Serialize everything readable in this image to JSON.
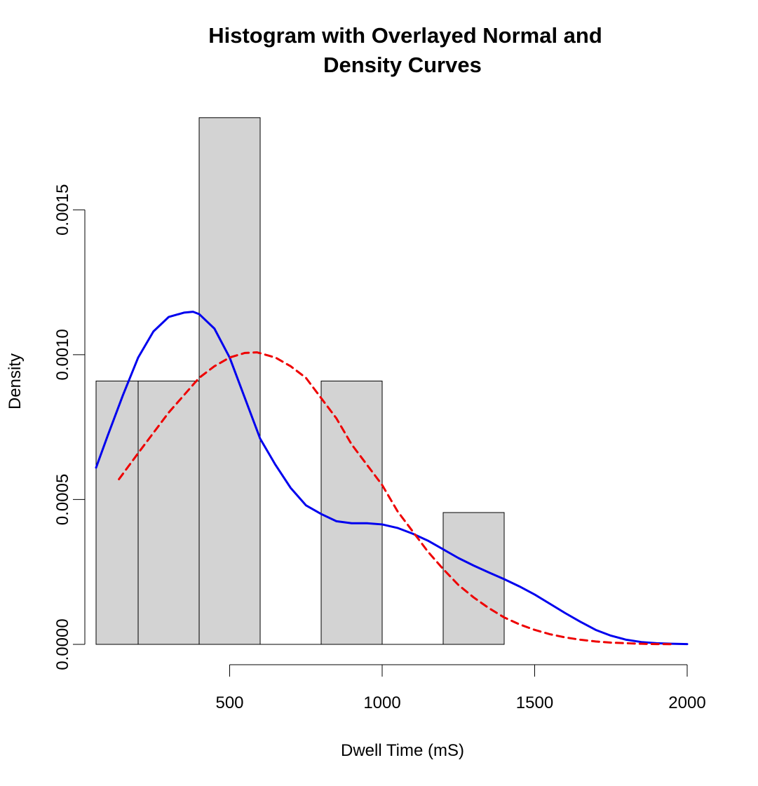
{
  "chart_data": {
    "type": "bar",
    "title_lines": [
      "Histogram with Overlayed Normal and",
      "Density Curves"
    ],
    "xlabel": "Dwell Time (mS)",
    "ylabel": "Density",
    "xlim": [
      62,
      2000
    ],
    "ylim": [
      0,
      0.00182
    ],
    "x_ticks": [
      500,
      1000,
      1500,
      2000
    ],
    "y_ticks": [
      0,
      0.0005,
      0.001,
      0.0015
    ],
    "x_tick_labels": [
      "500",
      "1000",
      "1500",
      "2000"
    ],
    "y_tick_labels": [
      "0.0000",
      "0.0005",
      "0.0010",
      "0.0015"
    ],
    "bins": [
      {
        "x0": 62,
        "x1": 200,
        "density": 0.000909
      },
      {
        "x0": 200,
        "x1": 400,
        "density": 0.000909
      },
      {
        "x0": 400,
        "x1": 600,
        "density": 0.001818
      },
      {
        "x0": 600,
        "x1": 800,
        "density": 0
      },
      {
        "x0": 800,
        "x1": 1000,
        "density": 0.000909
      },
      {
        "x0": 1000,
        "x1": 1200,
        "density": 0
      },
      {
        "x0": 1200,
        "x1": 1400,
        "density": 0.000455
      }
    ],
    "series": [
      {
        "type": "line",
        "style": "solid",
        "color": "#0000ee",
        "x": [
          62,
          100,
          150,
          200,
          250,
          300,
          350,
          380,
          400,
          450,
          500,
          550,
          600,
          650,
          700,
          750,
          800,
          850,
          900,
          950,
          1000,
          1050,
          1100,
          1150,
          1200,
          1250,
          1300,
          1350,
          1400,
          1450,
          1500,
          1550,
          1600,
          1650,
          1700,
          1750,
          1800,
          1850,
          1900,
          1950,
          2000
        ],
        "y": [
          0.00061,
          0.00072,
          0.00086,
          0.00099,
          0.00108,
          0.00113,
          0.001145,
          0.001148,
          0.00114,
          0.00109,
          0.00099,
          0.00085,
          0.00071,
          0.00062,
          0.00054,
          0.00048,
          0.00045,
          0.000425,
          0.000418,
          0.000418,
          0.000414,
          0.000402,
          0.000382,
          0.000358,
          0.000328,
          0.000298,
          0.000272,
          0.000248,
          0.000225,
          0.0002,
          0.000172,
          0.00014,
          0.000108,
          7.8e-05,
          5e-05,
          3e-05,
          1.6e-05,
          8e-06,
          4e-06,
          2e-06,
          1e-06
        ]
      },
      {
        "type": "line",
        "style": "dashed",
        "color": "#ee0000",
        "x": [
          137,
          200,
          250,
          300,
          350,
          400,
          450,
          500,
          550,
          590,
          650,
          700,
          750,
          800,
          850,
          900,
          950,
          1000,
          1050,
          1100,
          1150,
          1200,
          1250,
          1300,
          1350,
          1400,
          1450,
          1500,
          1550,
          1600,
          1650,
          1700,
          1750,
          1800,
          1850,
          1900,
          1950
        ],
        "y": [
          0.00057,
          0.00066,
          0.00073,
          0.0008,
          0.00086,
          0.00092,
          0.00096,
          0.00099,
          0.001006,
          0.001008,
          0.00099,
          0.00096,
          0.00092,
          0.00085,
          0.00078,
          0.00069,
          0.00062,
          0.00055,
          0.00046,
          0.00039,
          0.00032,
          0.00026,
          0.000205,
          0.000162,
          0.000125,
          9.3e-05,
          6.9e-05,
          5e-05,
          3.5e-05,
          2.4e-05,
          1.6e-05,
          1e-05,
          6e-06,
          4e-06,
          2e-06,
          1e-06,
          5e-07
        ]
      }
    ],
    "colors": {
      "bar_fill": "#d3d3d3",
      "bar_stroke": "#000000"
    }
  }
}
